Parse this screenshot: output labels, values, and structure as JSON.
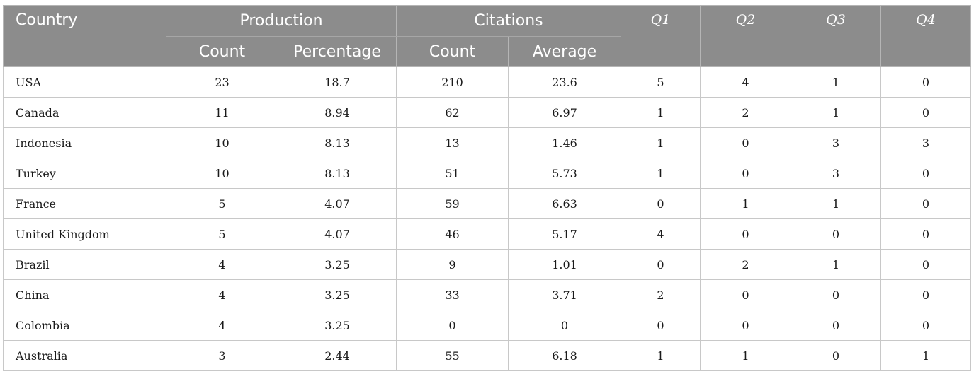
{
  "table": {
    "headers": {
      "country": "Country",
      "production": "Production",
      "citations": "Citations",
      "q1": "Q1",
      "q2": "Q2",
      "q3": "Q3",
      "q4": "Q4",
      "production_count": "Count",
      "production_percentage": "Percentage",
      "citations_count": "Count",
      "citations_average": "Average"
    },
    "rows": [
      {
        "country": "USA",
        "prod_count": "23",
        "prod_pct": "18.7",
        "cit_count": "210",
        "cit_avg": "23.6",
        "q1": "5",
        "q2": "4",
        "q3": "1",
        "q4": "0"
      },
      {
        "country": "Canada",
        "prod_count": "11",
        "prod_pct": "8.94",
        "cit_count": "62",
        "cit_avg": "6.97",
        "q1": "1",
        "q2": "2",
        "q3": "1",
        "q4": "0"
      },
      {
        "country": "Indonesia",
        "prod_count": "10",
        "prod_pct": "8.13",
        "cit_count": "13",
        "cit_avg": "1.46",
        "q1": "1",
        "q2": "0",
        "q3": "3",
        "q4": "3"
      },
      {
        "country": "Turkey",
        "prod_count": "10",
        "prod_pct": "8.13",
        "cit_count": "51",
        "cit_avg": "5.73",
        "q1": "1",
        "q2": "0",
        "q3": "3",
        "q4": "0"
      },
      {
        "country": "France",
        "prod_count": "5",
        "prod_pct": "4.07",
        "cit_count": "59",
        "cit_avg": "6.63",
        "q1": "0",
        "q2": "1",
        "q3": "1",
        "q4": "0"
      },
      {
        "country": "United Kingdom",
        "prod_count": "5",
        "prod_pct": "4.07",
        "cit_count": "46",
        "cit_avg": "5.17",
        "q1": "4",
        "q2": "0",
        "q3": "0",
        "q4": "0"
      },
      {
        "country": "Brazil",
        "prod_count": "4",
        "prod_pct": "3.25",
        "cit_count": "9",
        "cit_avg": "1.01",
        "q1": "0",
        "q2": "2",
        "q3": "1",
        "q4": "0"
      },
      {
        "country": "China",
        "prod_count": "4",
        "prod_pct": "3.25",
        "cit_count": "33",
        "cit_avg": "3.71",
        "q1": "2",
        "q2": "0",
        "q3": "0",
        "q4": "0"
      },
      {
        "country": "Colombia",
        "prod_count": "4",
        "prod_pct": "3.25",
        "cit_count": "0",
        "cit_avg": "0",
        "q1": "0",
        "q2": "0",
        "q3": "0",
        "q4": "0"
      },
      {
        "country": "Australia",
        "prod_count": "3",
        "prod_pct": "2.44",
        "cit_count": "55",
        "cit_avg": "6.18",
        "q1": "1",
        "q2": "1",
        "q3": "0",
        "q4": "1"
      }
    ]
  }
}
